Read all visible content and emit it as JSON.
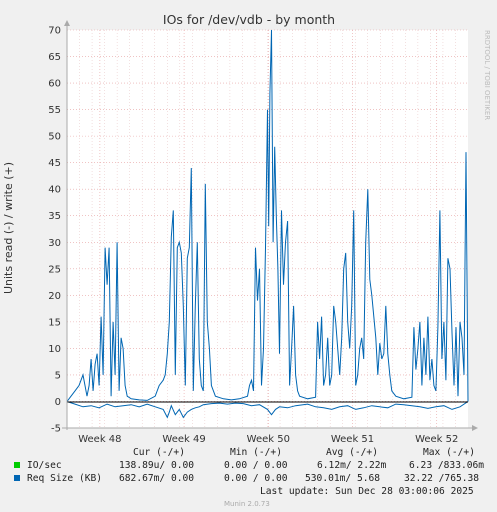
{
  "side_label": "RRDTOOL / TOBI OETIKER",
  "footer": "Munin 2.0.73",
  "last_update": "Last update: Sun Dec 28 03:00:06 2025",
  "legend_headers": [
    "Cur (-/+)",
    "Min (-/+)",
    "Avg (-/+)",
    "Max (-/+)"
  ],
  "legend": [
    {
      "name": "IO/sec",
      "color": "#00cc00",
      "cur": "138.89u/ 0.00",
      "min": "0.00 / 0.00",
      "avg": "6.12m/ 2.22m",
      "max": "6.23 /833.06m"
    },
    {
      "name": "Req Size (KB)",
      "color": "#0066b3",
      "cur": "682.67m/ 0.00",
      "min": "0.00 / 0.00",
      "avg": "530.01m/ 5.68",
      "max": "32.22 /765.38"
    }
  ],
  "chart_data": {
    "type": "line",
    "title": "IOs for /dev/vdb - by month",
    "ylabel": "Units read (-) / write (+)",
    "xlabel": "",
    "ylim": [
      -5,
      70
    ],
    "yticks": [
      -5,
      0,
      5,
      10,
      15,
      20,
      25,
      30,
      35,
      40,
      45,
      50,
      55,
      60,
      65,
      70
    ],
    "xlim": [
      0,
      1
    ],
    "xticks": [
      {
        "label": "Week 48",
        "x": 0.082
      },
      {
        "label": "Week 49",
        "x": 0.292
      },
      {
        "label": "Week 50",
        "x": 0.502
      },
      {
        "label": "Week 51",
        "x": 0.712
      },
      {
        "label": "Week 52",
        "x": 0.922
      }
    ],
    "grid": true,
    "series": [
      {
        "name": "Req Size (KB) write (+)",
        "color": "#0066b3",
        "points": [
          [
            0,
            0
          ],
          [
            0.01,
            1
          ],
          [
            0.02,
            2
          ],
          [
            0.03,
            3
          ],
          [
            0.04,
            5
          ],
          [
            0.05,
            1
          ],
          [
            0.055,
            3
          ],
          [
            0.06,
            8
          ],
          [
            0.065,
            2
          ],
          [
            0.07,
            7
          ],
          [
            0.075,
            9
          ],
          [
            0.08,
            3
          ],
          [
            0.085,
            16
          ],
          [
            0.09,
            5
          ],
          [
            0.095,
            29
          ],
          [
            0.1,
            22
          ],
          [
            0.105,
            29
          ],
          [
            0.11,
            1
          ],
          [
            0.115,
            15
          ],
          [
            0.12,
            5
          ],
          [
            0.125,
            30
          ],
          [
            0.13,
            2
          ],
          [
            0.135,
            12
          ],
          [
            0.14,
            10
          ],
          [
            0.145,
            3
          ],
          [
            0.15,
            1
          ],
          [
            0.16,
            0.5
          ],
          [
            0.18,
            0.3
          ],
          [
            0.2,
            0.2
          ],
          [
            0.22,
            1
          ],
          [
            0.23,
            3
          ],
          [
            0.24,
            4
          ],
          [
            0.245,
            5
          ],
          [
            0.25,
            9
          ],
          [
            0.255,
            15
          ],
          [
            0.26,
            31
          ],
          [
            0.265,
            36
          ],
          [
            0.27,
            5
          ],
          [
            0.275,
            29
          ],
          [
            0.28,
            30
          ],
          [
            0.285,
            28
          ],
          [
            0.29,
            18
          ],
          [
            0.295,
            3
          ],
          [
            0.3,
            27
          ],
          [
            0.305,
            29
          ],
          [
            0.31,
            44
          ],
          [
            0.315,
            2
          ],
          [
            0.32,
            18
          ],
          [
            0.325,
            30
          ],
          [
            0.33,
            8
          ],
          [
            0.335,
            3
          ],
          [
            0.34,
            2
          ],
          [
            0.345,
            41
          ],
          [
            0.35,
            15
          ],
          [
            0.355,
            10
          ],
          [
            0.36,
            3
          ],
          [
            0.37,
            1
          ],
          [
            0.39,
            0.5
          ],
          [
            0.41,
            0.3
          ],
          [
            0.43,
            0.5
          ],
          [
            0.45,
            1
          ],
          [
            0.455,
            3
          ],
          [
            0.46,
            4
          ],
          [
            0.465,
            2
          ],
          [
            0.47,
            29
          ],
          [
            0.475,
            19
          ],
          [
            0.48,
            25
          ],
          [
            0.485,
            3
          ],
          [
            0.49,
            10
          ],
          [
            0.495,
            29
          ],
          [
            0.5,
            55
          ],
          [
            0.503,
            33
          ],
          [
            0.506,
            58
          ],
          [
            0.51,
            70
          ],
          [
            0.514,
            30
          ],
          [
            0.518,
            48
          ],
          [
            0.522,
            35
          ],
          [
            0.526,
            25
          ],
          [
            0.53,
            9
          ],
          [
            0.535,
            36
          ],
          [
            0.54,
            22
          ],
          [
            0.545,
            30
          ],
          [
            0.55,
            34
          ],
          [
            0.555,
            3
          ],
          [
            0.56,
            10
          ],
          [
            0.565,
            18
          ],
          [
            0.57,
            5
          ],
          [
            0.575,
            2
          ],
          [
            0.58,
            1
          ],
          [
            0.6,
            0.5
          ],
          [
            0.62,
            0.8
          ],
          [
            0.625,
            15
          ],
          [
            0.63,
            8
          ],
          [
            0.635,
            16
          ],
          [
            0.64,
            3
          ],
          [
            0.645,
            5
          ],
          [
            0.65,
            12
          ],
          [
            0.655,
            3
          ],
          [
            0.66,
            5
          ],
          [
            0.665,
            18
          ],
          [
            0.67,
            15
          ],
          [
            0.675,
            10
          ],
          [
            0.68,
            5
          ],
          [
            0.685,
            12
          ],
          [
            0.69,
            25
          ],
          [
            0.695,
            28
          ],
          [
            0.7,
            15
          ],
          [
            0.705,
            10
          ],
          [
            0.71,
            18
          ],
          [
            0.715,
            36
          ],
          [
            0.72,
            3
          ],
          [
            0.725,
            5
          ],
          [
            0.73,
            10
          ],
          [
            0.735,
            12
          ],
          [
            0.74,
            8
          ],
          [
            0.745,
            30
          ],
          [
            0.75,
            40
          ],
          [
            0.755,
            23
          ],
          [
            0.76,
            20
          ],
          [
            0.765,
            16
          ],
          [
            0.77,
            12
          ],
          [
            0.775,
            5
          ],
          [
            0.78,
            11
          ],
          [
            0.785,
            8
          ],
          [
            0.79,
            9
          ],
          [
            0.795,
            18
          ],
          [
            0.8,
            9
          ],
          [
            0.805,
            5
          ],
          [
            0.81,
            2
          ],
          [
            0.82,
            1
          ],
          [
            0.84,
            0.5
          ],
          [
            0.86,
            0.8
          ],
          [
            0.865,
            14
          ],
          [
            0.87,
            6
          ],
          [
            0.875,
            10
          ],
          [
            0.88,
            15
          ],
          [
            0.885,
            3
          ],
          [
            0.89,
            12
          ],
          [
            0.895,
            5
          ],
          [
            0.9,
            16
          ],
          [
            0.905,
            4
          ],
          [
            0.91,
            8
          ],
          [
            0.915,
            3
          ],
          [
            0.92,
            2
          ],
          [
            0.925,
            14
          ],
          [
            0.93,
            36
          ],
          [
            0.935,
            8
          ],
          [
            0.94,
            15
          ],
          [
            0.945,
            4
          ],
          [
            0.95,
            27
          ],
          [
            0.955,
            25
          ],
          [
            0.96,
            13
          ],
          [
            0.965,
            3
          ],
          [
            0.97,
            14
          ],
          [
            0.975,
            1
          ],
          [
            0.98,
            15
          ],
          [
            0.985,
            12
          ],
          [
            0.99,
            5
          ],
          [
            0.995,
            47
          ],
          [
            1,
            0
          ]
        ]
      },
      {
        "name": "Req Size (KB) read (-)",
        "color": "#0066b3",
        "points": [
          [
            0,
            0
          ],
          [
            0.02,
            -0.5
          ],
          [
            0.04,
            -1
          ],
          [
            0.06,
            -0.8
          ],
          [
            0.08,
            -1.2
          ],
          [
            0.1,
            -0.5
          ],
          [
            0.12,
            -1
          ],
          [
            0.14,
            -0.8
          ],
          [
            0.16,
            -0.6
          ],
          [
            0.18,
            -1
          ],
          [
            0.2,
            -0.5
          ],
          [
            0.22,
            -1
          ],
          [
            0.24,
            -1.5
          ],
          [
            0.25,
            -3
          ],
          [
            0.255,
            -2
          ],
          [
            0.26,
            -0.8
          ],
          [
            0.27,
            -2.5
          ],
          [
            0.28,
            -1.5
          ],
          [
            0.29,
            -3
          ],
          [
            0.3,
            -2
          ],
          [
            0.31,
            -1.5
          ],
          [
            0.32,
            -1.2
          ],
          [
            0.33,
            -1
          ],
          [
            0.34,
            -0.6
          ],
          [
            0.36,
            -0.4
          ],
          [
            0.38,
            -0.3
          ],
          [
            0.4,
            -0.5
          ],
          [
            0.42,
            -0.3
          ],
          [
            0.44,
            -0.4
          ],
          [
            0.46,
            -0.8
          ],
          [
            0.48,
            -0.6
          ],
          [
            0.5,
            -1.5
          ],
          [
            0.51,
            -2.5
          ],
          [
            0.52,
            -1.5
          ],
          [
            0.53,
            -1
          ],
          [
            0.55,
            -1.2
          ],
          [
            0.57,
            -0.8
          ],
          [
            0.6,
            -0.5
          ],
          [
            0.62,
            -1
          ],
          [
            0.64,
            -1.2
          ],
          [
            0.66,
            -1.5
          ],
          [
            0.68,
            -1
          ],
          [
            0.7,
            -0.8
          ],
          [
            0.72,
            -1.5
          ],
          [
            0.74,
            -1.2
          ],
          [
            0.76,
            -0.8
          ],
          [
            0.78,
            -1
          ],
          [
            0.8,
            -1.2
          ],
          [
            0.82,
            -0.5
          ],
          [
            0.84,
            -0.6
          ],
          [
            0.86,
            -0.8
          ],
          [
            0.88,
            -1
          ],
          [
            0.9,
            -1.3
          ],
          [
            0.92,
            -1
          ],
          [
            0.94,
            -0.8
          ],
          [
            0.96,
            -1.5
          ],
          [
            0.98,
            -1
          ],
          [
            1,
            0
          ]
        ]
      }
    ]
  }
}
